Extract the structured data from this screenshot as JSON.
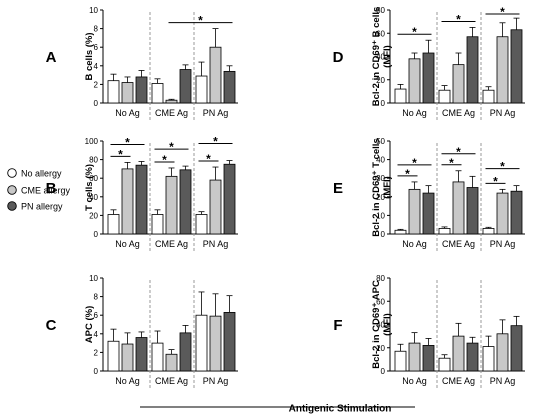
{
  "legend": {
    "items": [
      {
        "label": "No allergy",
        "color": "#ffffff"
      },
      {
        "label": "CME allergy",
        "color": "#c8c8c8"
      },
      {
        "label": "PN allergy",
        "color": "#5a5a5a"
      }
    ]
  },
  "footer_label": "Antigenic Stimulation",
  "chart_data": [
    {
      "panel": "A",
      "type": "bar",
      "ylabel": "B cells (%)",
      "ylim": [
        0,
        10
      ],
      "yticks": [
        0,
        2,
        4,
        6,
        8,
        10
      ],
      "categories": [
        "No Ag",
        "CME Ag",
        "PN Ag"
      ],
      "series": [
        {
          "name": "No allergy",
          "values": [
            2.4,
            2.1,
            2.9
          ],
          "errors": [
            0.7,
            0.5,
            1.5
          ]
        },
        {
          "name": "CME allergy",
          "values": [
            2.2,
            0.3,
            6.0
          ],
          "errors": [
            0.6,
            0.1,
            2.0
          ]
        },
        {
          "name": "PN allergy",
          "values": [
            2.8,
            3.6,
            3.4
          ],
          "errors": [
            0.7,
            0.5,
            0.6
          ]
        }
      ],
      "significance": [
        {
          "from": [
            1,
            1
          ],
          "to": [
            2,
            2
          ],
          "level": 0,
          "label": "*"
        }
      ]
    },
    {
      "panel": "B",
      "type": "bar",
      "ylabel": "T cells (%)",
      "ylim": [
        0,
        100
      ],
      "yticks": [
        0,
        20,
        40,
        60,
        80,
        100
      ],
      "categories": [
        "No Ag",
        "CME Ag",
        "PN Ag"
      ],
      "series": [
        {
          "name": "No allergy",
          "values": [
            21,
            21,
            21
          ],
          "errors": [
            5,
            5,
            3
          ]
        },
        {
          "name": "CME allergy",
          "values": [
            70,
            62,
            58
          ],
          "errors": [
            7,
            9,
            14
          ]
        },
        {
          "name": "PN allergy",
          "values": [
            74,
            69,
            75
          ],
          "errors": [
            4,
            4,
            4
          ]
        }
      ],
      "significance": [
        {
          "from": [
            0,
            0
          ],
          "to": [
            0,
            1
          ],
          "level": 0,
          "label": "*"
        },
        {
          "from": [
            0,
            0
          ],
          "to": [
            0,
            2
          ],
          "level": 1,
          "label": "*"
        },
        {
          "from": [
            1,
            0
          ],
          "to": [
            1,
            1
          ],
          "level": 0,
          "label": "*"
        },
        {
          "from": [
            1,
            0
          ],
          "to": [
            1,
            2
          ],
          "level": 1,
          "label": "*"
        },
        {
          "from": [
            2,
            0
          ],
          "to": [
            2,
            1
          ],
          "level": 0,
          "label": "*"
        },
        {
          "from": [
            2,
            0
          ],
          "to": [
            2,
            2
          ],
          "level": 1,
          "label": "*"
        }
      ]
    },
    {
      "panel": "C",
      "type": "bar",
      "ylabel": "APC (%)",
      "ylim": [
        0,
        10
      ],
      "yticks": [
        0,
        2,
        4,
        6,
        8,
        10
      ],
      "categories": [
        "No Ag",
        "CME Ag",
        "PN Ag"
      ],
      "series": [
        {
          "name": "No allergy",
          "values": [
            3.2,
            3.0,
            6.0
          ],
          "errors": [
            1.3,
            1.3,
            2.5
          ]
        },
        {
          "name": "CME allergy",
          "values": [
            2.9,
            1.8,
            5.9
          ],
          "errors": [
            1.2,
            0.5,
            2.4
          ]
        },
        {
          "name": "PN allergy",
          "values": [
            3.6,
            4.1,
            6.3
          ],
          "errors": [
            0.6,
            0.8,
            1.8
          ]
        }
      ],
      "significance": []
    },
    {
      "panel": "D",
      "type": "bar",
      "ylabel": "Bcl-2 in CD69⁺ B cells",
      "yunit": "(MFI)",
      "ylim": [
        0,
        80
      ],
      "yticks": [
        0,
        20,
        40,
        60,
        80
      ],
      "categories": [
        "No Ag",
        "CME Ag",
        "PN Ag"
      ],
      "series": [
        {
          "name": "No allergy",
          "values": [
            12,
            11,
            11
          ],
          "errors": [
            4,
            4,
            3
          ]
        },
        {
          "name": "CME allergy",
          "values": [
            38,
            33,
            57
          ],
          "errors": [
            5,
            10,
            12
          ]
        },
        {
          "name": "PN allergy",
          "values": [
            43,
            57,
            63
          ],
          "errors": [
            11,
            8,
            10
          ]
        }
      ],
      "significance": [
        {
          "from": [
            0,
            0
          ],
          "to": [
            0,
            2
          ],
          "level": 0,
          "label": "*"
        },
        {
          "from": [
            1,
            0
          ],
          "to": [
            1,
            2
          ],
          "level": 0,
          "label": "*"
        },
        {
          "from": [
            2,
            0
          ],
          "to": [
            2,
            2
          ],
          "level": 0,
          "label": "*"
        }
      ]
    },
    {
      "panel": "E",
      "type": "bar",
      "ylabel": "Bcl-2 in CD69⁺ T cells",
      "yunit": "(MFI)",
      "ylim": [
        0,
        50
      ],
      "yticks": [
        0,
        10,
        20,
        30,
        40,
        50
      ],
      "categories": [
        "No Ag",
        "CME Ag",
        "PN Ag"
      ],
      "series": [
        {
          "name": "No allergy",
          "values": [
            2,
            3,
            3
          ],
          "errors": [
            0.5,
            0.8,
            0.6
          ]
        },
        {
          "name": "CME allergy",
          "values": [
            24,
            28,
            22
          ],
          "errors": [
            4,
            6,
            2
          ]
        },
        {
          "name": "PN allergy",
          "values": [
            22,
            25,
            23
          ],
          "errors": [
            4,
            6,
            3
          ]
        }
      ],
      "significance": [
        {
          "from": [
            0,
            0
          ],
          "to": [
            0,
            1
          ],
          "level": 0,
          "label": "*"
        },
        {
          "from": [
            0,
            0
          ],
          "to": [
            0,
            2
          ],
          "level": 1,
          "label": "*"
        },
        {
          "from": [
            1,
            0
          ],
          "to": [
            1,
            1
          ],
          "level": 0,
          "label": "*"
        },
        {
          "from": [
            1,
            0
          ],
          "to": [
            1,
            2
          ],
          "level": 1,
          "label": "*"
        },
        {
          "from": [
            2,
            0
          ],
          "to": [
            2,
            1
          ],
          "level": 0,
          "label": "*"
        },
        {
          "from": [
            2,
            0
          ],
          "to": [
            2,
            2
          ],
          "level": 1,
          "label": "*"
        }
      ]
    },
    {
      "panel": "F",
      "type": "bar",
      "ylabel": "Bcl-2 in CD69⁺ APC",
      "yunit": "(MFI)",
      "ylim": [
        0,
        80
      ],
      "yticks": [
        0,
        20,
        40,
        60,
        80
      ],
      "categories": [
        "No Ag",
        "CME Ag",
        "PN Ag"
      ],
      "series": [
        {
          "name": "No allergy",
          "values": [
            17,
            11,
            21
          ],
          "errors": [
            6,
            3,
            9
          ]
        },
        {
          "name": "CME allergy",
          "values": [
            24,
            30,
            32
          ],
          "errors": [
            9,
            11,
            12
          ]
        },
        {
          "name": "PN allergy",
          "values": [
            22,
            24,
            39
          ],
          "errors": [
            6,
            5,
            8
          ]
        }
      ],
      "significance": []
    }
  ]
}
